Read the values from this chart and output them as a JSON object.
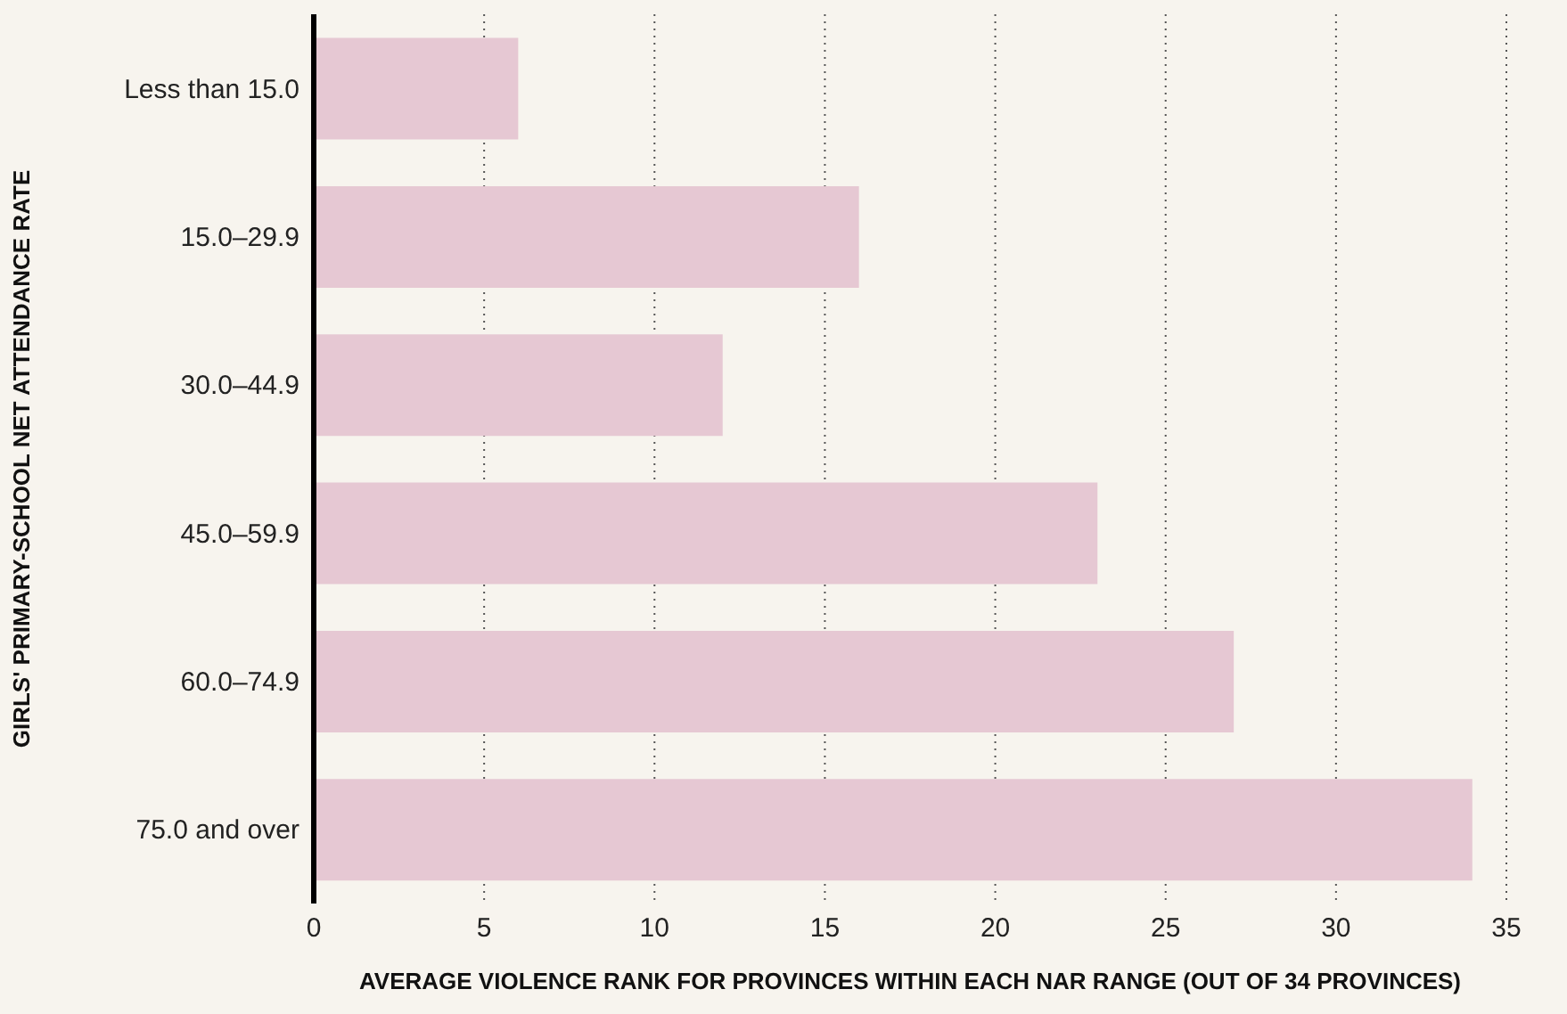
{
  "chart_data": {
    "type": "bar",
    "orientation": "horizontal",
    "categories": [
      "Less than 15.0",
      "15.0–29.9",
      "30.0–44.9",
      "45.0–59.9",
      "60.0–74.9",
      "75.0 and over"
    ],
    "values": [
      6,
      16,
      12,
      23,
      27,
      34
    ],
    "color": "#e6c8d3",
    "xlim": [
      0,
      35
    ],
    "xticks": [
      0,
      5,
      10,
      15,
      20,
      25,
      30,
      35
    ],
    "grid": "x",
    "xlabel": "AVERAGE VIOLENCE RANK FOR PROVINCES WITHIN EACH NAR RANGE (OUT OF 34 PROVINCES)",
    "ylabel": "GIRLS' PRIMARY-SCHOOL NET ATTENDANCE RATE"
  }
}
